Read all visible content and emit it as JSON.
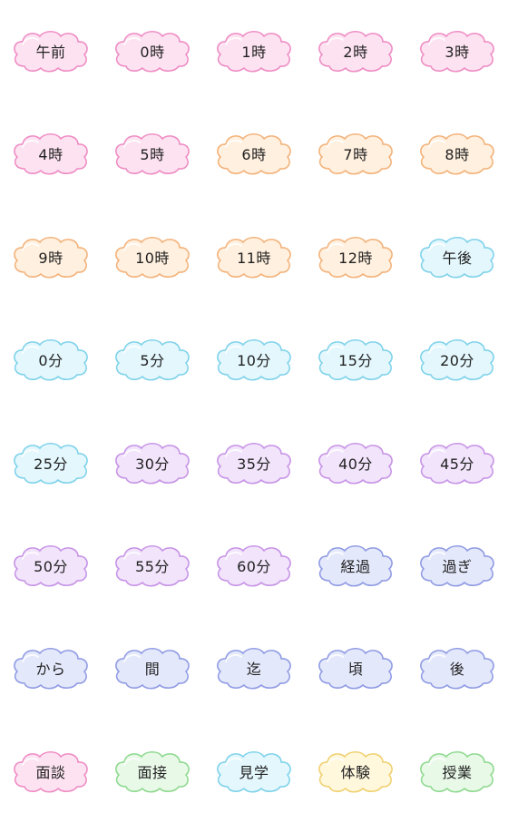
{
  "palette": {
    "pink": {
      "fill": "#fde3f1",
      "stroke": "#ee8cc4"
    },
    "orange": {
      "fill": "#fff0df",
      "stroke": "#f3b27a"
    },
    "cyan": {
      "fill": "#e3f7fd",
      "stroke": "#7fd2ea"
    },
    "purple": {
      "fill": "#f1e4fb",
      "stroke": "#c793e6"
    },
    "blue": {
      "fill": "#e4e8fb",
      "stroke": "#8f9be3"
    },
    "green": {
      "fill": "#e8f9e8",
      "stroke": "#8fd98f"
    },
    "yellow": {
      "fill": "#fff8dc",
      "stroke": "#f0d070"
    }
  },
  "stickers": [
    {
      "label": "午前",
      "color": "pink"
    },
    {
      "label": "0時",
      "color": "pink"
    },
    {
      "label": "1時",
      "color": "pink"
    },
    {
      "label": "2時",
      "color": "pink"
    },
    {
      "label": "3時",
      "color": "pink"
    },
    {
      "label": "4時",
      "color": "pink"
    },
    {
      "label": "5時",
      "color": "pink"
    },
    {
      "label": "6時",
      "color": "orange"
    },
    {
      "label": "7時",
      "color": "orange"
    },
    {
      "label": "8時",
      "color": "orange"
    },
    {
      "label": "9時",
      "color": "orange"
    },
    {
      "label": "10時",
      "color": "orange"
    },
    {
      "label": "11時",
      "color": "orange"
    },
    {
      "label": "12時",
      "color": "orange"
    },
    {
      "label": "午後",
      "color": "cyan"
    },
    {
      "label": "0分",
      "color": "cyan"
    },
    {
      "label": "5分",
      "color": "cyan"
    },
    {
      "label": "10分",
      "color": "cyan"
    },
    {
      "label": "15分",
      "color": "cyan"
    },
    {
      "label": "20分",
      "color": "cyan"
    },
    {
      "label": "25分",
      "color": "cyan"
    },
    {
      "label": "30分",
      "color": "purple"
    },
    {
      "label": "35分",
      "color": "purple"
    },
    {
      "label": "40分",
      "color": "purple"
    },
    {
      "label": "45分",
      "color": "purple"
    },
    {
      "label": "50分",
      "color": "purple"
    },
    {
      "label": "55分",
      "color": "purple"
    },
    {
      "label": "60分",
      "color": "purple"
    },
    {
      "label": "経過",
      "color": "blue"
    },
    {
      "label": "過ぎ",
      "color": "blue"
    },
    {
      "label": "から",
      "color": "blue"
    },
    {
      "label": "間",
      "color": "blue"
    },
    {
      "label": "迄",
      "color": "blue"
    },
    {
      "label": "頃",
      "color": "blue"
    },
    {
      "label": "後",
      "color": "blue"
    },
    {
      "label": "面談",
      "color": "pink"
    },
    {
      "label": "面接",
      "color": "green"
    },
    {
      "label": "見学",
      "color": "cyan"
    },
    {
      "label": "体験",
      "color": "yellow"
    },
    {
      "label": "授業",
      "color": "green"
    }
  ]
}
